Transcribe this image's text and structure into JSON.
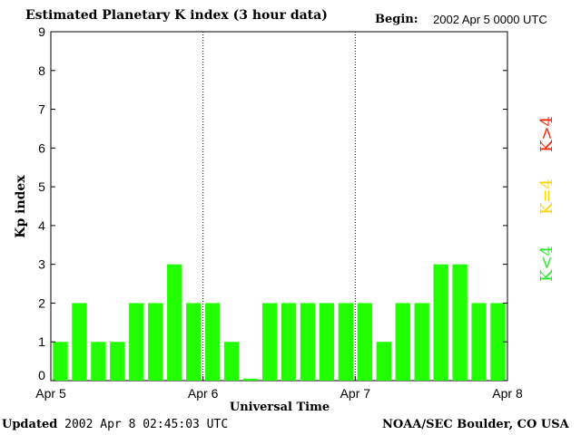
{
  "header": {
    "title": "Estimated Planetary K index (3 hour data)",
    "begin_label": "Begin:",
    "begin_value": "2002 Apr 5 0000 UTC"
  },
  "footer": {
    "updated_label": "Updated",
    "updated_value": "2002 Apr  8 02:45:03 UTC",
    "source": "NOAA/SEC Boulder, CO USA"
  },
  "legend": [
    {
      "label": "K>4",
      "color": "#ff2000"
    },
    {
      "label": "K=4",
      "color": "#ffd700"
    },
    {
      "label": "K<4",
      "color": "#22ee22"
    }
  ],
  "chart_data": {
    "type": "bar",
    "title": "Estimated Planetary K index (3 hour data)",
    "xlabel": "Universal Time",
    "ylabel": "Kp index",
    "ylim": [
      0,
      9
    ],
    "yticks": [
      0,
      1,
      2,
      3,
      4,
      5,
      6,
      7,
      8,
      9
    ],
    "xticks": [
      "Apr 5",
      "Apr 6",
      "Apr 7",
      "Apr 8"
    ],
    "bar_color": "#22ff00",
    "values": [
      1,
      2,
      1,
      1,
      2,
      2,
      3,
      2,
      2,
      1,
      0.05,
      2,
      2,
      2,
      2,
      2,
      2,
      1,
      2,
      2,
      3,
      3,
      2,
      2
    ]
  }
}
